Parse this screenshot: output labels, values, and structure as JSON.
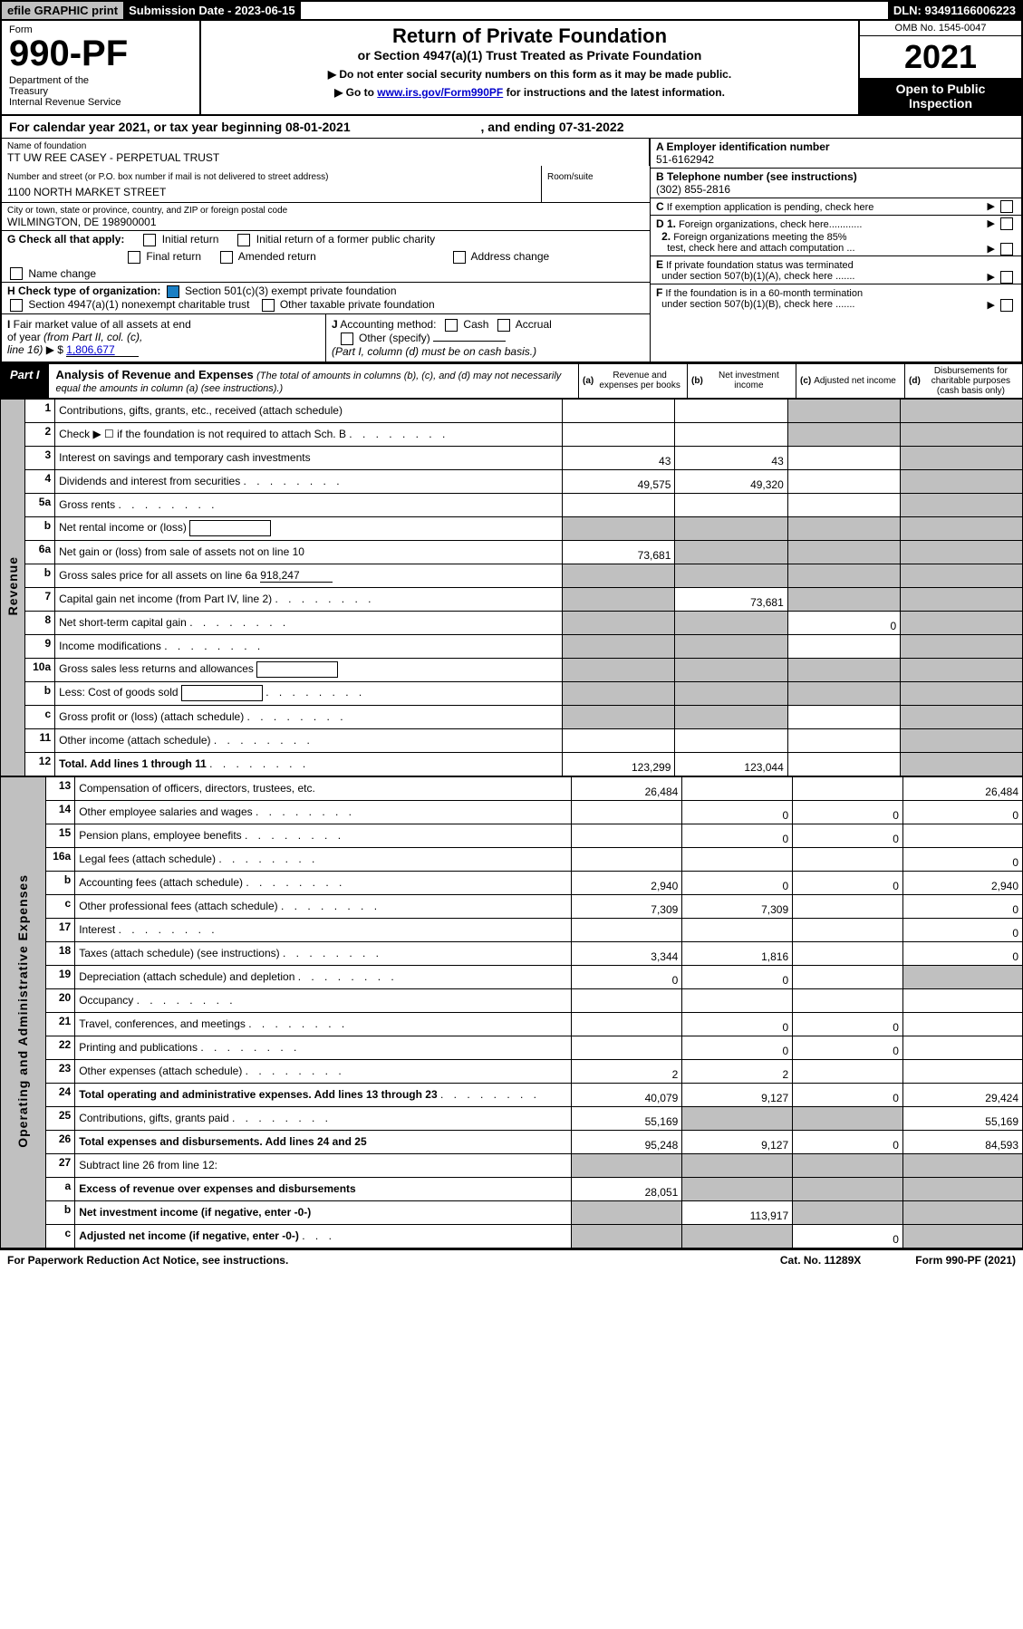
{
  "top": {
    "efile": "efile GRAPHIC print",
    "sub_label": "Submission Date - 2023-06-15",
    "dln": "DLN: 93491166006223"
  },
  "header": {
    "form_label": "Form",
    "form_num": "990-PF",
    "dept": "Department of the Treasury\nInternal Revenue Service",
    "title": "Return of Private Foundation",
    "subtitle": "or Section 4947(a)(1) Trust Treated as Private Foundation",
    "note1": "▶ Do not enter social security numbers on this form as it may be made public.",
    "note2_pre": "▶ Go to ",
    "note2_link": "www.irs.gov/Form990PF",
    "note2_post": " for instructions and the latest information.",
    "omb": "OMB No. 1545-0047",
    "year": "2021",
    "open": "Open to Public Inspection"
  },
  "cal": {
    "pre": "For calendar year 2021, or tax year beginning ",
    "start": "08-01-2021",
    "mid": " , and ending ",
    "end": "07-31-2022"
  },
  "info": {
    "name_label": "Name of foundation",
    "name": "TT UW REE CASEY - PERPETUAL TRUST",
    "addr_label": "Number and street (or P.O. box number if mail is not delivered to street address)",
    "addr": "1100 NORTH MARKET STREET",
    "room_label": "Room/suite",
    "city_label": "City or town, state or province, country, and ZIP or foreign postal code",
    "city": "WILMINGTON, DE  198900001",
    "a_label": "A Employer identification number",
    "a_val": "51-6162942",
    "b_label": "B Telephone number (see instructions)",
    "b_val": "(302) 855-2816",
    "c_label": "C If exemption application is pending, check here",
    "g_label": "G Check all that apply:",
    "g_items": [
      "Initial return",
      "Initial return of a former public charity",
      "Final return",
      "Amended return",
      "Address change",
      "Name change"
    ],
    "d1": "D 1. Foreign organizations, check here............",
    "d2": "2. Foreign organizations meeting the 85% test, check here and attach computation ...",
    "h_label": "H Check type of organization:",
    "h1": "Section 501(c)(3) exempt private foundation",
    "h2": "Section 4947(a)(1) nonexempt charitable trust",
    "h3": "Other taxable private foundation",
    "e_label": "E If private foundation status was terminated under section 507(b)(1)(A), check here .......",
    "i_label": "I Fair market value of all assets at end of year (from Part II, col. (c), line 16) ▶ $",
    "i_val": "1,806,677",
    "j_label": "J Accounting method:",
    "j_cash": "Cash",
    "j_accrual": "Accrual",
    "j_other": "Other (specify)",
    "j_note": "(Part I, column (d) must be on cash basis.)",
    "f_label": "F If the foundation is in a 60-month termination under section 507(b)(1)(B), check here ......."
  },
  "part1": {
    "title": "Part I",
    "heading": "Analysis of Revenue and Expenses",
    "note": "(The total of amounts in columns (b), (c), and (d) may not necessarily equal the amounts in column (a) (see instructions).)",
    "cols": {
      "a": "Revenue and expenses per books",
      "b": "Net investment income",
      "c": "Adjusted net income",
      "d": "Disbursements for charitable purposes (cash basis only)"
    },
    "col_w": {
      "a": 120,
      "b": 120,
      "c": 120,
      "d": 130
    }
  },
  "side_labels": {
    "rev": "Revenue",
    "exp": "Operating and Administrative Expenses"
  },
  "rows": [
    {
      "n": "1",
      "d": "Contributions, gifts, grants, etc., received (attach schedule)",
      "a": "",
      "b": "",
      "c": "",
      "dd": "",
      "cs": true,
      "ds": true
    },
    {
      "n": "2",
      "d": "Check ▶ ☐ if the foundation is not required to attach Sch. B",
      "dots": true,
      "a": "",
      "b": "",
      "c": "",
      "dd": "",
      "cs": true,
      "ds": true
    },
    {
      "n": "3",
      "d": "Interest on savings and temporary cash investments",
      "a": "43",
      "b": "43",
      "c": "",
      "dd": "",
      "ds": true
    },
    {
      "n": "4",
      "d": "Dividends and interest from securities",
      "dots": true,
      "a": "49,575",
      "b": "49,320",
      "c": "",
      "dd": "",
      "ds": true
    },
    {
      "n": "5a",
      "d": "Gross rents",
      "dots": true,
      "a": "",
      "b": "",
      "c": "",
      "dd": "",
      "ds": true
    },
    {
      "n": "b",
      "d": "Net rental income or (loss)",
      "inline": true,
      "a": "",
      "b": "",
      "c": "",
      "dd": "",
      "as": true,
      "bs": true,
      "cs": true,
      "ds": true
    },
    {
      "n": "6a",
      "d": "Net gain or (loss) from sale of assets not on line 10",
      "a": "73,681",
      "b": "",
      "c": "",
      "dd": "",
      "bs": true,
      "cs": true,
      "ds": true
    },
    {
      "n": "b",
      "d": "Gross sales price for all assets on line 6a",
      "under": "918,247",
      "a": "",
      "b": "",
      "c": "",
      "dd": "",
      "as": true,
      "bs": true,
      "cs": true,
      "ds": true
    },
    {
      "n": "7",
      "d": "Capital gain net income (from Part IV, line 2)",
      "dots": true,
      "a": "",
      "b": "73,681",
      "c": "",
      "dd": "",
      "as": true,
      "cs": true,
      "ds": true
    },
    {
      "n": "8",
      "d": "Net short-term capital gain",
      "dots": true,
      "a": "",
      "b": "",
      "c": "0",
      "dd": "",
      "as": true,
      "bs": true,
      "ds": true
    },
    {
      "n": "9",
      "d": "Income modifications",
      "dots": true,
      "a": "",
      "b": "",
      "c": "",
      "dd": "",
      "as": true,
      "bs": true,
      "ds": true
    },
    {
      "n": "10a",
      "d": "Gross sales less returns and allowances",
      "inline": true,
      "a": "",
      "b": "",
      "c": "",
      "dd": "",
      "as": true,
      "bs": true,
      "cs": true,
      "ds": true
    },
    {
      "n": "b",
      "d": "Less: Cost of goods sold",
      "dots": true,
      "inline": true,
      "a": "",
      "b": "",
      "c": "",
      "dd": "",
      "as": true,
      "bs": true,
      "cs": true,
      "ds": true
    },
    {
      "n": "c",
      "d": "Gross profit or (loss) (attach schedule)",
      "dots": true,
      "a": "",
      "b": "",
      "c": "",
      "dd": "",
      "as": true,
      "bs": true,
      "ds": true
    },
    {
      "n": "11",
      "d": "Other income (attach schedule)",
      "dots": true,
      "a": "",
      "b": "",
      "c": "",
      "dd": "",
      "ds": true
    },
    {
      "n": "12",
      "d": "Total. Add lines 1 through 11",
      "dots": true,
      "bold": true,
      "a": "123,299",
      "b": "123,044",
      "c": "",
      "dd": "",
      "ds": true
    }
  ],
  "exp_rows": [
    {
      "n": "13",
      "d": "Compensation of officers, directors, trustees, etc.",
      "a": "26,484",
      "b": "",
      "c": "",
      "dd": "26,484"
    },
    {
      "n": "14",
      "d": "Other employee salaries and wages",
      "dots": true,
      "a": "",
      "b": "0",
      "c": "0",
      "dd": "0"
    },
    {
      "n": "15",
      "d": "Pension plans, employee benefits",
      "dots": true,
      "a": "",
      "b": "0",
      "c": "0",
      "dd": ""
    },
    {
      "n": "16a",
      "d": "Legal fees (attach schedule)",
      "dots": true,
      "a": "",
      "b": "",
      "c": "",
      "dd": "0"
    },
    {
      "n": "b",
      "d": "Accounting fees (attach schedule)",
      "dots": true,
      "a": "2,940",
      "b": "0",
      "c": "0",
      "dd": "2,940"
    },
    {
      "n": "c",
      "d": "Other professional fees (attach schedule)",
      "dots": true,
      "a": "7,309",
      "b": "7,309",
      "c": "",
      "dd": "0"
    },
    {
      "n": "17",
      "d": "Interest",
      "dots": true,
      "a": "",
      "b": "",
      "c": "",
      "dd": "0"
    },
    {
      "n": "18",
      "d": "Taxes (attach schedule) (see instructions)",
      "dots": true,
      "a": "3,344",
      "b": "1,816",
      "c": "",
      "dd": "0"
    },
    {
      "n": "19",
      "d": "Depreciation (attach schedule) and depletion",
      "dots": true,
      "a": "0",
      "b": "0",
      "c": "",
      "dd": "",
      "ds": true
    },
    {
      "n": "20",
      "d": "Occupancy",
      "dots": true,
      "a": "",
      "b": "",
      "c": "",
      "dd": ""
    },
    {
      "n": "21",
      "d": "Travel, conferences, and meetings",
      "dots": true,
      "a": "",
      "b": "0",
      "c": "0",
      "dd": ""
    },
    {
      "n": "22",
      "d": "Printing and publications",
      "dots": true,
      "a": "",
      "b": "0",
      "c": "0",
      "dd": ""
    },
    {
      "n": "23",
      "d": "Other expenses (attach schedule)",
      "dots": true,
      "a": "2",
      "b": "2",
      "c": "",
      "dd": ""
    },
    {
      "n": "24",
      "d": "Total operating and administrative expenses. Add lines 13 through 23",
      "dots": true,
      "bold": true,
      "a": "40,079",
      "b": "9,127",
      "c": "0",
      "dd": "29,424"
    },
    {
      "n": "25",
      "d": "Contributions, gifts, grants paid",
      "dots": true,
      "a": "55,169",
      "b": "",
      "c": "",
      "dd": "55,169",
      "bs": true,
      "cs": true
    },
    {
      "n": "26",
      "d": "Total expenses and disbursements. Add lines 24 and 25",
      "bold": true,
      "a": "95,248",
      "b": "9,127",
      "c": "0",
      "dd": "84,593"
    }
  ],
  "bottom_rows": [
    {
      "n": "27",
      "d": "Subtract line 26 from line 12:",
      "a": "",
      "b": "",
      "c": "",
      "dd": "",
      "as": true,
      "bs": true,
      "cs": true,
      "ds": true
    },
    {
      "n": "a",
      "d": "Excess of revenue over expenses and disbursements",
      "bold": true,
      "a": "28,051",
      "b": "",
      "c": "",
      "dd": "",
      "bs": true,
      "cs": true,
      "ds": true
    },
    {
      "n": "b",
      "d": "Net investment income (if negative, enter -0-)",
      "bold": true,
      "a": "",
      "b": "113,917",
      "c": "",
      "dd": "",
      "as": true,
      "cs": true,
      "ds": true
    },
    {
      "n": "c",
      "d": "Adjusted net income (if negative, enter -0-)",
      "dots": true,
      "bold": true,
      "a": "",
      "b": "",
      "c": "0",
      "dd": "",
      "as": true,
      "bs": true,
      "ds": true
    }
  ],
  "footer": {
    "left": "For Paperwork Reduction Act Notice, see instructions.",
    "mid": "Cat. No. 11289X",
    "right": "Form 990-PF (2021)"
  }
}
